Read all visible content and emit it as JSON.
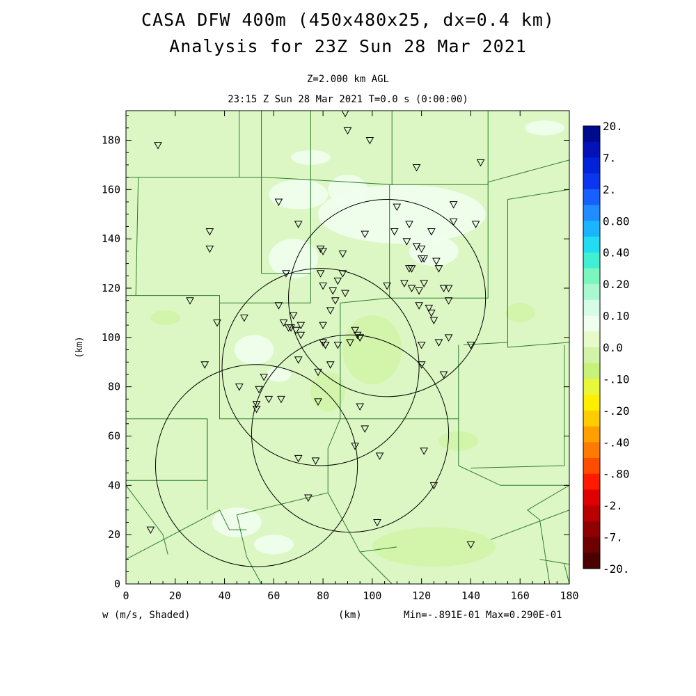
{
  "title_line1": "CASA DFW 400m (450x480x25, dx=0.4 km)",
  "title_line2": "Analysis for 23Z Sun 28 Mar 2021",
  "level_label": "Z=2.000 km AGL",
  "time_label": "23:15 Z Sun 28 Mar 2021   T=0.0 s (0:00:00)",
  "footer": {
    "field_label": "w (m/s, Shaded)",
    "x_unit": "(km)",
    "min_max": "Min=-.891E-01 Max=0.290E-01"
  },
  "chart_data": {
    "type": "heatmap",
    "field": "w (m/s)",
    "xlabel": "(km)",
    "ylabel": "(km)",
    "xlim": [
      0,
      180
    ],
    "ylim": [
      0,
      192
    ],
    "xticks": [
      0,
      20,
      40,
      60,
      80,
      100,
      120,
      140,
      160,
      180
    ],
    "yticks": [
      0,
      20,
      40,
      60,
      80,
      100,
      120,
      140,
      160,
      180
    ],
    "min": -0.0891,
    "max": 0.029,
    "colorbar": {
      "labels": [
        "20.",
        "7.",
        "2.",
        "0.80",
        "0.40",
        "0.20",
        "0.10",
        "0.0",
        "-.10",
        "-.20",
        "-.40",
        "-.80",
        "-2.",
        "-7.",
        "-20."
      ],
      "colors": [
        "#000a8f",
        "#0012b8",
        "#0022d8",
        "#0a36f0",
        "#1660ff",
        "#1f8cff",
        "#19b6ff",
        "#22dcf2",
        "#3ff0d2",
        "#7cf6bf",
        "#aaf8cf",
        "#d6fbe6",
        "#f0feef",
        "#e6fbc8",
        "#d2f4a8",
        "#c6f27a",
        "#e8f73a",
        "#ffee00",
        "#ffcc00",
        "#ffa000",
        "#ff7a00",
        "#ff4d00",
        "#ff1a00",
        "#e00000",
        "#b80000",
        "#900000",
        "#6e0000",
        "#4a0000"
      ]
    },
    "radar_rings": [
      {
        "cx": 53,
        "cy": 48,
        "r": 41
      },
      {
        "cx": 79,
        "cy": 88,
        "r": 40
      },
      {
        "cx": 106,
        "cy": 116,
        "r": 40
      },
      {
        "cx": 91,
        "cy": 61,
        "r": 40
      }
    ],
    "stations": [
      [
        13,
        178
      ],
      [
        89,
        191
      ],
      [
        90,
        184
      ],
      [
        99,
        180
      ],
      [
        118,
        169
      ],
      [
        144,
        171
      ],
      [
        62,
        155
      ],
      [
        34,
        143
      ],
      [
        34,
        136
      ],
      [
        70,
        146
      ],
      [
        110,
        153
      ],
      [
        115,
        146
      ],
      [
        124,
        143
      ],
      [
        133,
        154
      ],
      [
        133,
        147
      ],
      [
        142,
        146
      ],
      [
        97,
        142
      ],
      [
        109,
        143
      ],
      [
        114,
        139
      ],
      [
        118,
        137
      ],
      [
        120,
        136
      ],
      [
        121,
        132
      ],
      [
        120,
        132
      ],
      [
        126,
        131
      ],
      [
        127,
        128
      ],
      [
        115,
        128
      ],
      [
        116,
        128
      ],
      [
        79,
        136
      ],
      [
        80,
        135
      ],
      [
        88,
        134
      ],
      [
        79,
        126
      ],
      [
        88,
        126
      ],
      [
        65,
        126
      ],
      [
        80,
        121
      ],
      [
        84,
        119
      ],
      [
        89,
        118
      ],
      [
        86,
        123
      ],
      [
        106,
        121
      ],
      [
        113,
        122
      ],
      [
        116,
        120
      ],
      [
        119,
        119
      ],
      [
        121,
        122
      ],
      [
        129,
        120
      ],
      [
        131,
        120
      ],
      [
        26,
        115
      ],
      [
        37,
        106
      ],
      [
        48,
        108
      ],
      [
        62,
        113
      ],
      [
        68,
        109
      ],
      [
        83,
        111
      ],
      [
        85,
        115
      ],
      [
        93,
        103
      ],
      [
        94,
        101
      ],
      [
        131,
        115
      ],
      [
        124,
        110
      ],
      [
        123,
        112
      ],
      [
        119,
        113
      ],
      [
        125,
        107
      ],
      [
        64,
        106
      ],
      [
        66,
        104
      ],
      [
        67,
        104
      ],
      [
        69,
        103
      ],
      [
        71,
        105
      ],
      [
        71,
        101
      ],
      [
        80,
        105
      ],
      [
        80,
        98
      ],
      [
        81,
        97
      ],
      [
        86,
        97
      ],
      [
        81,
        97
      ],
      [
        91,
        98
      ],
      [
        95,
        100
      ],
      [
        95,
        100
      ],
      [
        120,
        97
      ],
      [
        127,
        98
      ],
      [
        131,
        100
      ],
      [
        140,
        97
      ],
      [
        32,
        89
      ],
      [
        70,
        91
      ],
      [
        78,
        86
      ],
      [
        83,
        89
      ],
      [
        120,
        89
      ],
      [
        129,
        85
      ],
      [
        46,
        80
      ],
      [
        54,
        79
      ],
      [
        56,
        84
      ],
      [
        58,
        75
      ],
      [
        53,
        73
      ],
      [
        53,
        71
      ],
      [
        63,
        75
      ],
      [
        78,
        74
      ],
      [
        95,
        72
      ],
      [
        97,
        63
      ],
      [
        93,
        56
      ],
      [
        121,
        54
      ],
      [
        103,
        52
      ],
      [
        77,
        50
      ],
      [
        70,
        51
      ],
      [
        125,
        40
      ],
      [
        74,
        35
      ],
      [
        102,
        25
      ],
      [
        10,
        22
      ],
      [
        140,
        16
      ]
    ],
    "shading_patches": [
      {
        "cx": 112,
        "cy": 150,
        "rx": 34,
        "ry": 12,
        "level": "0.0"
      },
      {
        "cx": 70,
        "cy": 158,
        "rx": 12,
        "ry": 6,
        "level": "0.0"
      },
      {
        "cx": 68,
        "cy": 132,
        "rx": 10,
        "ry": 8,
        "level": "0.0"
      },
      {
        "cx": 90,
        "cy": 160,
        "rx": 8,
        "ry": 6,
        "level": "0.0"
      },
      {
        "cx": 75,
        "cy": 173,
        "rx": 8,
        "ry": 3,
        "level": "0.0"
      },
      {
        "cx": 170,
        "cy": 185,
        "rx": 8,
        "ry": 3,
        "level": "0.0"
      },
      {
        "cx": 125,
        "cy": 135,
        "rx": 10,
        "ry": 6,
        "level": "0.0"
      },
      {
        "cx": 100,
        "cy": 95,
        "rx": 12,
        "ry": 14,
        "level": "-.10"
      },
      {
        "cx": 82,
        "cy": 78,
        "rx": 7,
        "ry": 8,
        "level": "-.10"
      },
      {
        "cx": 52,
        "cy": 95,
        "rx": 8,
        "ry": 6,
        "level": "0.0"
      },
      {
        "cx": 62,
        "cy": 85,
        "rx": 5,
        "ry": 3,
        "level": "0.0"
      },
      {
        "cx": 125,
        "cy": 15,
        "rx": 25,
        "ry": 8,
        "level": "-.10"
      },
      {
        "cx": 45,
        "cy": 25,
        "rx": 10,
        "ry": 6,
        "level": "0.0"
      },
      {
        "cx": 60,
        "cy": 16,
        "rx": 8,
        "ry": 4,
        "level": "0.0"
      },
      {
        "cx": 135,
        "cy": 58,
        "rx": 8,
        "ry": 4,
        "level": "-.10"
      },
      {
        "cx": 16,
        "cy": 108,
        "rx": 6,
        "ry": 3,
        "level": "-.10"
      },
      {
        "cx": 160,
        "cy": 110,
        "rx": 6,
        "ry": 4,
        "level": "-.10"
      }
    ],
    "county_lines": [
      [
        [
          46,
          192
        ],
        [
          46,
          165
        ]
      ],
      [
        [
          0,
          165
        ],
        [
          55,
          165
        ],
        [
          55,
          192
        ]
      ],
      [
        [
          55,
          165
        ],
        [
          75,
          164
        ],
        [
          75,
          192
        ]
      ],
      [
        [
          55,
          165
        ],
        [
          55,
          126
        ],
        [
          75,
          126
        ]
      ],
      [
        [
          75,
          164
        ],
        [
          75,
          114
        ],
        [
          38,
          114
        ],
        [
          38,
          117
        ],
        [
          0,
          117
        ]
      ],
      [
        [
          5,
          165
        ],
        [
          4,
          117
        ]
      ],
      [
        [
          75,
          164
        ],
        [
          108,
          162
        ],
        [
          108,
          192
        ]
      ],
      [
        [
          108,
          162
        ],
        [
          147,
          162
        ],
        [
          147,
          192
        ]
      ],
      [
        [
          107,
          162
        ],
        [
          107,
          116
        ],
        [
          147,
          116
        ],
        [
          147,
          163
        ]
      ],
      [
        [
          147,
          163
        ],
        [
          180,
          172
        ]
      ],
      [
        [
          155,
          156
        ],
        [
          180,
          160
        ]
      ],
      [
        [
          155,
          156
        ],
        [
          155,
          96
        ],
        [
          180,
          98
        ]
      ],
      [
        [
          155,
          116
        ],
        [
          155,
          98
        ],
        [
          137,
          97
        ]
      ],
      [
        [
          107,
          116
        ],
        [
          87,
          114
        ],
        [
          87,
          67
        ]
      ],
      [
        [
          38,
          114
        ],
        [
          38,
          67
        ],
        [
          87,
          67
        ]
      ],
      [
        [
          0,
          67
        ],
        [
          33,
          67
        ],
        [
          33,
          42
        ],
        [
          0,
          42
        ]
      ],
      [
        [
          33,
          67
        ],
        [
          33,
          30
        ]
      ],
      [
        [
          87,
          67
        ],
        [
          135,
          67
        ],
        [
          135,
          97
        ]
      ],
      [
        [
          135,
          67
        ],
        [
          135,
          48
        ],
        [
          152,
          40
        ],
        [
          180,
          40
        ]
      ],
      [
        [
          140,
          47
        ],
        [
          178,
          48
        ],
        [
          178,
          97
        ]
      ],
      [
        [
          180,
          40
        ],
        [
          163,
          30
        ],
        [
          168,
          26
        ],
        [
          172,
          0
        ]
      ],
      [
        [
          87,
          67
        ],
        [
          82,
          55
        ],
        [
          82,
          37
        ],
        [
          45,
          28
        ],
        [
          49,
          11
        ],
        [
          55,
          0
        ]
      ],
      [
        [
          82,
          37
        ],
        [
          95,
          13
        ],
        [
          110,
          15
        ]
      ],
      [
        [
          0,
          10
        ],
        [
          38,
          30
        ],
        [
          42,
          22
        ],
        [
          49,
          22
        ]
      ],
      [
        [
          0,
          40
        ],
        [
          15,
          20
        ],
        [
          17,
          12
        ]
      ],
      [
        [
          95,
          13
        ],
        [
          108,
          0
        ]
      ],
      [
        [
          148,
          18
        ],
        [
          180,
          30
        ]
      ],
      [
        [
          40,
          0
        ],
        [
          52,
          0
        ]
      ],
      [
        [
          168,
          10
        ],
        [
          180,
          8
        ]
      ],
      [
        [
          178,
          8
        ],
        [
          180,
          0
        ]
      ]
    ]
  }
}
